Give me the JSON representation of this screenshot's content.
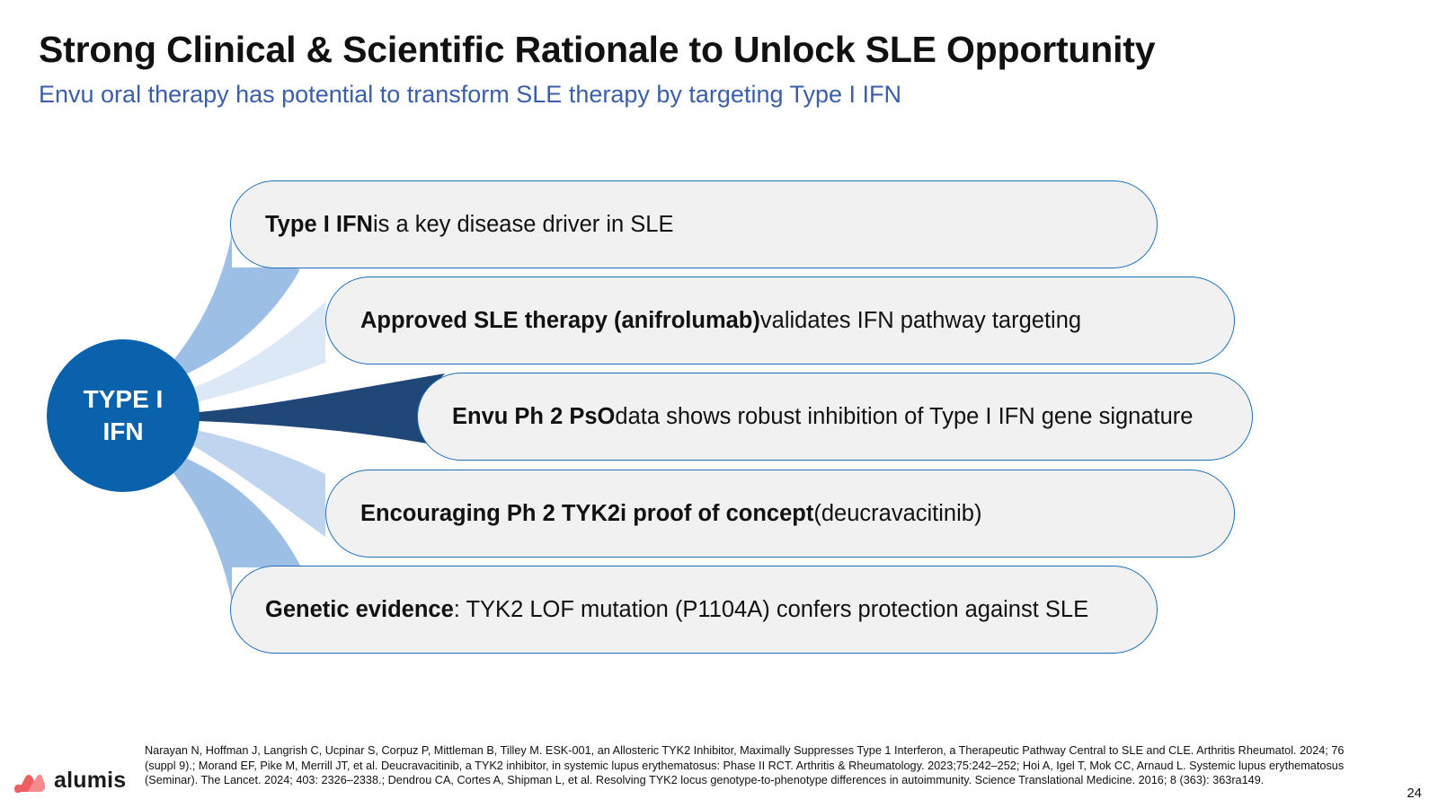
{
  "slide": {
    "title": "Strong Clinical & Scientific Rationale to Unlock SLE Opportunity",
    "subtitle": "Envu oral therapy has potential to transform SLE therapy by targeting Type I IFN"
  },
  "hub": {
    "label": "TYPE I IFN"
  },
  "items": [
    {
      "bold": "Type I IFN",
      "text": " is a key disease driver in SLE"
    },
    {
      "bold": "Approved SLE therapy (anifrolumab)",
      "text": " validates IFN pathway targeting"
    },
    {
      "bold": "Envu Ph 2 PsO",
      "text": " data shows robust inhibition of Type I IFN gene signature"
    },
    {
      "bold": "Encouraging Ph 2 TYK2i proof of concept",
      "text": " (deucravacitinib)"
    },
    {
      "bold": "Genetic evidence",
      "text": ": TYK2 LOF mutation (P1104A) confers protection against SLE"
    }
  ],
  "footer": {
    "logo_text": "alumis",
    "references": "Narayan N, Hoffman J, Langrish C, Ucpinar S, Corpuz P, Mittleman B, Tilley M. ESK-001, an Allosteric TYK2 Inhibitor, Maximally Suppresses Type 1 Interferon, a Therapeutic Pathway Central to SLE and CLE. Arthritis Rheumatol. 2024; 76 (suppl 9).; Morand EF, Pike M, Merrill JT, et al. Deucravacitinib, a TYK2 inhibitor, in systemic lupus erythematosus: Phase II RCT. Arthritis & Rheumatology. 2023;75:242–252; Hoi A, Igel T, Mok CC, Arnaud L. Systemic lupus erythematosus (Seminar). The Lancet. 2024; 403: 2326–2338.; Dendrou CA, Cortes A, Shipman L, et al. Resolving TYK2 locus genotype-to-phenotype differences in autoimmunity. Science Translational Medicine. 2016; 8 (363): 363ra149.",
    "page_number": "24"
  },
  "colors": {
    "title": "#111111",
    "subtitle": "#3b5ea8",
    "hub_fill": "#0a62ad",
    "pill_fill": "#f1f1f1",
    "pill_border": "#1f6fb8",
    "connector_outer": "#9dbfe6",
    "connector_second": "#dde8f6",
    "connector_center": "#1f4879",
    "connector_fourth": "#bfd4ef",
    "logo_mark": "#ef5e62"
  },
  "icons": {
    "logo_mark": "alumis-logo-icon"
  }
}
